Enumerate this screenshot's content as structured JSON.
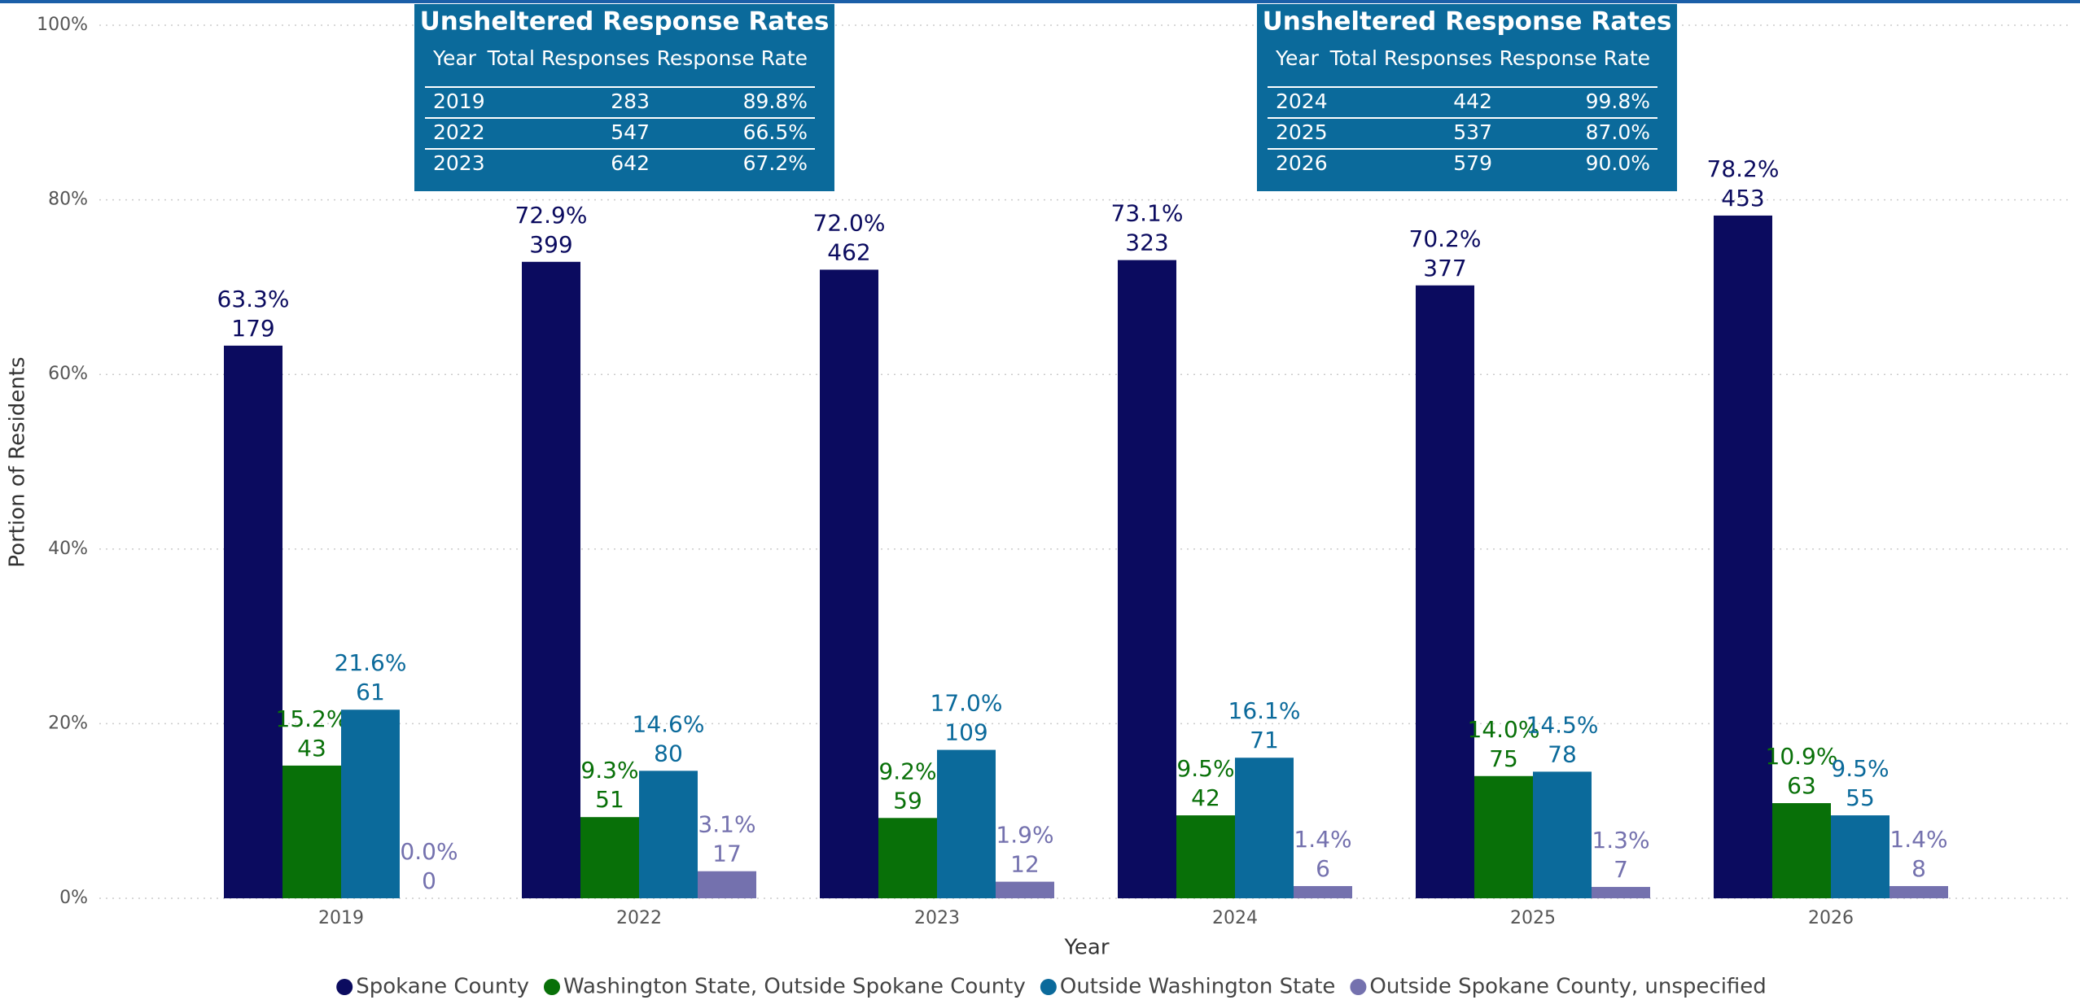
{
  "chart_data": {
    "type": "bar",
    "xlabel": "Year",
    "ylabel": "Portion of Residents",
    "categories": [
      "2019",
      "2022",
      "2023",
      "2024",
      "2025",
      "2026"
    ],
    "series": [
      {
        "name": "Spokane County",
        "color": "#0b0b5f",
        "values": [
          63.3,
          72.9,
          72.0,
          73.1,
          70.2,
          78.2
        ],
        "value_labels": [
          "63.3%",
          "72.9%",
          "72.0%",
          "73.1%",
          "70.2%",
          "78.2%"
        ],
        "counts": [
          179,
          399,
          462,
          323,
          377,
          453
        ]
      },
      {
        "name": "Washington State, Outside Spokane County",
        "color": "#087008",
        "values": [
          15.2,
          9.3,
          9.2,
          9.5,
          14.0,
          10.9
        ],
        "value_labels": [
          "15.2%",
          "9.3%",
          "9.2%",
          "9.5%",
          "14.0%",
          "10.9%"
        ],
        "counts": [
          43,
          51,
          59,
          42,
          75,
          63
        ]
      },
      {
        "name": "Outside Washington State",
        "color": "#0b6a9b",
        "values": [
          21.6,
          14.6,
          17.0,
          16.1,
          14.5,
          9.5
        ],
        "value_labels": [
          "21.6%",
          "14.6%",
          "17.0%",
          "16.1%",
          "14.5%",
          "9.5%"
        ],
        "counts": [
          61,
          80,
          109,
          71,
          78,
          55
        ]
      },
      {
        "name": "Outside Spokane County, unspecified",
        "color": "#7471ae",
        "values": [
          0.0,
          3.1,
          1.9,
          1.4,
          1.3,
          1.4
        ],
        "value_labels": [
          "0.0%",
          "3.1%",
          "1.9%",
          "1.4%",
          "1.3%",
          "1.4%"
        ],
        "counts": [
          0,
          17,
          12,
          6,
          7,
          8
        ]
      }
    ],
    "ylim": [
      0,
      100
    ],
    "yticks": [
      {
        "value": 0,
        "label": "0%"
      },
      {
        "value": 20,
        "label": "20%"
      },
      {
        "value": 40,
        "label": "40%"
      },
      {
        "value": 60,
        "label": "60%"
      },
      {
        "value": 80,
        "label": "80%"
      },
      {
        "value": 100,
        "label": "100%"
      }
    ],
    "grid": true,
    "legend": "bottom",
    "tables": [
      {
        "title": "Unsheltered Response Rates",
        "columns": [
          "Year",
          "Total Responses",
          "Response Rate"
        ],
        "rows": [
          [
            "2019",
            283,
            "89.8%"
          ],
          [
            "2022",
            547,
            "66.5%"
          ],
          [
            "2023",
            642,
            "67.2%"
          ]
        ]
      },
      {
        "title": "Unsheltered Response Rates",
        "columns": [
          "Year",
          "Total Responses",
          "Response Rate"
        ],
        "rows": [
          [
            "2024",
            442,
            "99.8%"
          ],
          [
            "2025",
            537,
            "87.0%"
          ],
          [
            "2026",
            579,
            "90.0%"
          ]
        ]
      }
    ]
  }
}
